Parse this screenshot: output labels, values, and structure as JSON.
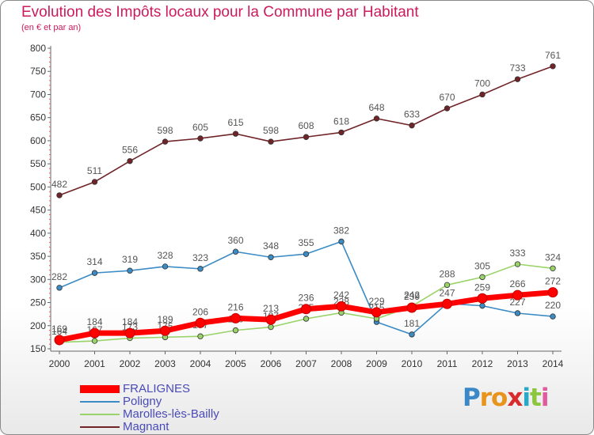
{
  "header": {
    "title": "Evolution des Impôts locaux pour la Commune par Habitant",
    "subtitle": "(en € et par an)"
  },
  "chart_data": {
    "type": "line",
    "title": "Evolution des Impôts locaux pour la Commune par Habitant",
    "subtitle": "(en € et par an)",
    "xlabel": "",
    "ylabel": "",
    "ylim": [
      150,
      800
    ],
    "yticks": [
      150,
      200,
      250,
      300,
      350,
      400,
      450,
      500,
      550,
      600,
      650,
      700,
      750,
      800
    ],
    "grid": false,
    "legend_position": "bottom-left",
    "categories": [
      "2000",
      "2001",
      "2002",
      "2003",
      "2004",
      "2005",
      "2006",
      "2007",
      "2008",
      "2009",
      "2010",
      "2011",
      "2012",
      "2013",
      "2014"
    ],
    "series": [
      {
        "name": "Magnant",
        "color": "#702428",
        "values": [
          482,
          511,
          556,
          598,
          605,
          615,
          598,
          608,
          618,
          648,
          633,
          670,
          700,
          733,
          761
        ],
        "labels_shown": true
      },
      {
        "name": "Poligny",
        "color": "#3b8bc5",
        "values": [
          282,
          314,
          319,
          328,
          323,
          360,
          348,
          355,
          382,
          208,
          181,
          248,
          243,
          227,
          220
        ],
        "labels_shown": [
          true,
          true,
          true,
          true,
          true,
          true,
          true,
          true,
          true,
          false,
          true,
          false,
          false,
          true,
          true
        ]
      },
      {
        "name": "Marolles-lès-Bailly",
        "color": "#99d36a",
        "values": [
          164,
          167,
          173,
          175,
          177,
          190,
          197,
          215,
          228,
          215,
          242,
          288,
          305,
          333,
          324
        ],
        "labels_shown": true
      },
      {
        "name": "FRALIGNES",
        "color": "#ff0000",
        "values": [
          169,
          184,
          184,
          189,
          206,
          216,
          213,
          236,
          242,
          229,
          239,
          247,
          259,
          266,
          272
        ],
        "labels_shown": true
      }
    ]
  },
  "legend": [
    {
      "name": "FRALIGNES",
      "color": "#ff0000"
    },
    {
      "name": "Poligny",
      "color": "#3b8bc5"
    },
    {
      "name": "Marolles-lès-Bailly",
      "color": "#99d36a"
    },
    {
      "name": "Magnant",
      "color": "#702428"
    }
  ],
  "logo": {
    "letters": [
      "P",
      "r",
      "o",
      "x",
      "i",
      "t",
      "i"
    ],
    "colors": [
      "#3a88c8",
      "#e8931c",
      "#e8931c",
      "#d92b2b",
      "#2aa8c8",
      "#8cc63f",
      "#e05a9c"
    ]
  }
}
